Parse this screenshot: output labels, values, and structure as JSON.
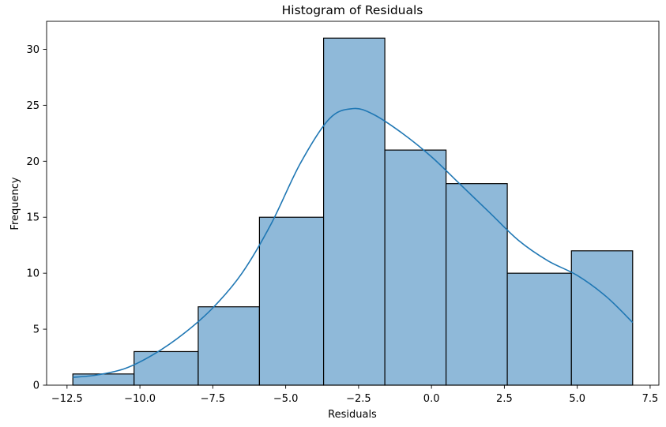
{
  "chart_data": {
    "type": "histogram",
    "title": "Histogram of Residuals",
    "xlabel": "Residuals",
    "ylabel": "Frequency",
    "xlim": [
      -13.2,
      7.8
    ],
    "ylim": [
      0,
      32.5
    ],
    "x_ticks": [
      -12.5,
      -10.0,
      -7.5,
      -5.0,
      -2.5,
      0.0,
      2.5,
      5.0,
      7.5
    ],
    "x_tick_labels": [
      "−12.5",
      "−10.0",
      "−7.5",
      "−5.0",
      "−2.5",
      "0.0",
      "2.5",
      "5.0",
      "7.5"
    ],
    "y_ticks": [
      0,
      5,
      10,
      15,
      20,
      25,
      30
    ],
    "y_tick_labels": [
      "0",
      "5",
      "10",
      "15",
      "20",
      "25",
      "30"
    ],
    "bin_edges": [
      -12.3,
      -10.2,
      -8.0,
      -5.9,
      -3.7,
      -1.6,
      0.5,
      2.6,
      4.8,
      6.9
    ],
    "counts": [
      1,
      3,
      7,
      15,
      31,
      21,
      18,
      10,
      12
    ],
    "kde": {
      "x": [
        -12.3,
        -11.5,
        -10.5,
        -9.5,
        -8.5,
        -7.5,
        -6.5,
        -5.5,
        -4.5,
        -3.5,
        -2.7,
        -2.0,
        -1.0,
        0.0,
        1.0,
        2.0,
        3.0,
        4.0,
        5.0,
        6.0,
        6.9
      ],
      "y": [
        0.7,
        0.9,
        1.5,
        2.8,
        4.6,
        6.9,
        10.0,
        14.4,
        19.8,
        23.8,
        24.7,
        24.2,
        22.5,
        20.4,
        17.9,
        15.4,
        12.9,
        11.1,
        9.8,
        7.9,
        5.6
      ]
    },
    "colors": {
      "bar_fill": "#8fb9d9",
      "bar_edge": "#000000",
      "kde_line": "#1f77b4"
    },
    "grid": false
  }
}
